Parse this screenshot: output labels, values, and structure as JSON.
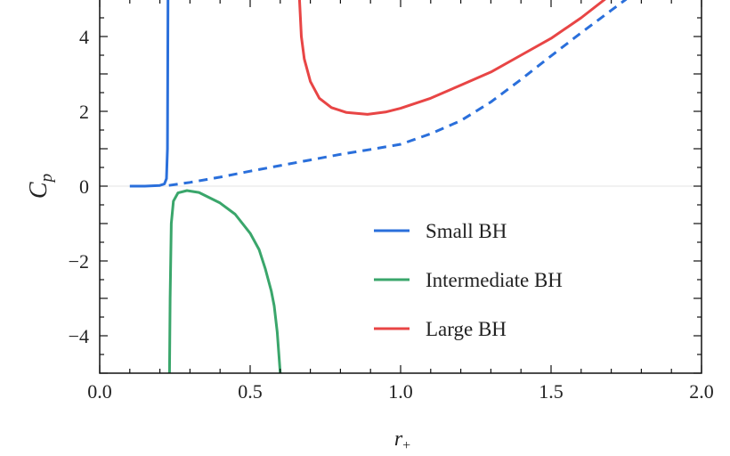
{
  "chart_data": {
    "type": "line",
    "xlabel": "r+",
    "xlabel_main": "r",
    "xlabel_sub": "+",
    "ylabel_main": "C",
    "ylabel_sub": "p",
    "xlim": [
      0.0,
      2.0
    ],
    "ylim": [
      -5,
      5
    ],
    "xticks": [
      0.0,
      0.5,
      1.0,
      1.5,
      2.0
    ],
    "xtick_labels": [
      "0.0",
      "0.5",
      "1.0",
      "1.5",
      "2.0"
    ],
    "yticks": [
      -4,
      -2,
      0,
      2,
      4
    ],
    "ytick_labels": [
      "−4",
      "−2",
      "0",
      "2",
      "4"
    ],
    "grid": false,
    "zero_line": true,
    "legend_position": "center-right",
    "series": [
      {
        "name": "Small BH",
        "color": "#2a6fdb",
        "style": "solid",
        "x": [
          0.1,
          0.15,
          0.2,
          0.215,
          0.222,
          0.225,
          0.226,
          0.227
        ],
        "y": [
          0.0,
          0.0,
          0.02,
          0.06,
          0.2,
          1.0,
          3.0,
          5.0
        ]
      },
      {
        "name": "Small BH (dashed)",
        "legend": false,
        "color": "#2a6fdb",
        "style": "dashed",
        "x": [
          0.23,
          0.3,
          0.4,
          0.5,
          0.6,
          0.7,
          0.8,
          0.9,
          1.0,
          1.1,
          1.2,
          1.3,
          1.4,
          1.5,
          1.6,
          1.7,
          1.75
        ],
        "y": [
          0.02,
          0.1,
          0.24,
          0.4,
          0.55,
          0.7,
          0.85,
          0.98,
          1.12,
          1.4,
          1.75,
          2.25,
          2.85,
          3.48,
          4.1,
          4.7,
          5.0
        ]
      },
      {
        "name": "Intermediate BH",
        "color": "#3aa66b",
        "style": "solid",
        "x": [
          0.232,
          0.234,
          0.238,
          0.245,
          0.26,
          0.29,
          0.33,
          0.4,
          0.45,
          0.5,
          0.53,
          0.55,
          0.57,
          0.58,
          0.59,
          0.6
        ],
        "y": [
          -5.0,
          -3.0,
          -1.0,
          -0.4,
          -0.18,
          -0.12,
          -0.17,
          -0.45,
          -0.75,
          -1.26,
          -1.7,
          -2.2,
          -2.8,
          -3.2,
          -3.9,
          -5.0
        ]
      },
      {
        "name": "Large BH",
        "color": "#e84545",
        "style": "solid",
        "x": [
          0.664,
          0.67,
          0.68,
          0.7,
          0.73,
          0.77,
          0.82,
          0.89,
          0.95,
          1.0,
          1.1,
          1.2,
          1.3,
          1.4,
          1.5,
          1.6,
          1.68
        ],
        "y": [
          5.0,
          4.0,
          3.4,
          2.8,
          2.35,
          2.1,
          1.97,
          1.92,
          1.98,
          2.08,
          2.35,
          2.7,
          3.05,
          3.5,
          3.95,
          4.5,
          5.0
        ]
      }
    ],
    "legend": [
      "Small BH",
      "Intermediate BH",
      "Large BH"
    ]
  }
}
